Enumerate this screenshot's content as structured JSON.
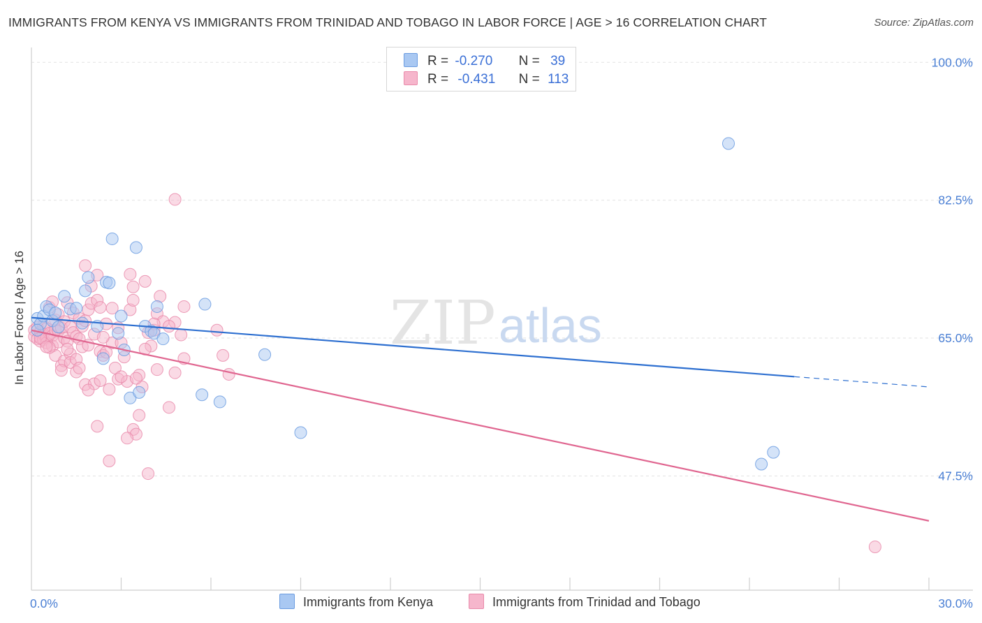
{
  "title": "IMMIGRANTS FROM KENYA VS IMMIGRANTS FROM TRINIDAD AND TOBAGO IN LABOR FORCE | AGE > 16 CORRELATION CHART",
  "source": "Source: ZipAtlas.com",
  "watermark": {
    "zip": "ZIP",
    "atlas": "atlas"
  },
  "legend": {
    "kenya": {
      "r_label": "R =",
      "r_value": "-0.270",
      "n_label": "N =",
      "n_value": "39"
    },
    "tt": {
      "r_label": "R =",
      "r_value": "-0.431",
      "n_label": "N =",
      "n_value": "113"
    }
  },
  "bottom_legend": {
    "kenya": "Immigrants from Kenya",
    "tt": "Immigrants from Trinidad and Tobago"
  },
  "colors": {
    "kenya_fill": "#a9c8f2",
    "kenya_stroke": "#6a9be0",
    "kenya_line": "#2d6fd0",
    "tt_fill": "#f6b6cc",
    "tt_stroke": "#e98aaa",
    "tt_line": "#e06690",
    "tick_label": "#4a7fd4",
    "grid": "#e2e2e2"
  },
  "chart_data": {
    "type": "scatter",
    "title": "IMMIGRANTS FROM KENYA VS IMMIGRANTS FROM TRINIDAD AND TOBAGO IN LABOR FORCE | AGE > 16 CORRELATION CHART",
    "xlabel": "",
    "ylabel": "In Labor Force | Age > 16",
    "xlim": [
      0,
      30
    ],
    "ylim": [
      33,
      101
    ],
    "x_tick_labels": [
      "0.0%",
      "30.0%"
    ],
    "y_ticks": [
      47.5,
      65.0,
      82.5,
      100.0
    ],
    "y_tick_labels": [
      "47.5%",
      "65.0%",
      "82.5%",
      "100.0%"
    ],
    "series": [
      {
        "name": "Immigrants from Kenya",
        "r": -0.27,
        "n": 39,
        "trend": {
          "x0": 0,
          "y0": 67.6,
          "x1": 25.5,
          "y1": 60.1,
          "dash_x1": 30,
          "dash_y1": 58.8
        },
        "points": [
          [
            0.2,
            67.5
          ],
          [
            0.3,
            66.8
          ],
          [
            0.4,
            67.8
          ],
          [
            0.5,
            69.0
          ],
          [
            0.6,
            68.6
          ],
          [
            0.7,
            67.2
          ],
          [
            0.8,
            68.2
          ],
          [
            0.9,
            66.4
          ],
          [
            1.1,
            70.3
          ],
          [
            1.3,
            68.7
          ],
          [
            1.5,
            68.8
          ],
          [
            1.7,
            66.9
          ],
          [
            1.8,
            71.0
          ],
          [
            1.9,
            72.7
          ],
          [
            2.2,
            66.5
          ],
          [
            2.4,
            62.4
          ],
          [
            2.5,
            72.1
          ],
          [
            2.6,
            72.0
          ],
          [
            2.7,
            77.6
          ],
          [
            2.9,
            65.6
          ],
          [
            3.0,
            67.8
          ],
          [
            3.1,
            63.5
          ],
          [
            3.3,
            57.4
          ],
          [
            3.5,
            76.5
          ],
          [
            3.6,
            58.1
          ],
          [
            3.8,
            66.5
          ],
          [
            4.0,
            65.9
          ],
          [
            4.1,
            65.6
          ],
          [
            4.2,
            69.0
          ],
          [
            4.4,
            64.9
          ],
          [
            5.7,
            57.8
          ],
          [
            5.8,
            69.3
          ],
          [
            6.3,
            56.9
          ],
          [
            7.8,
            62.9
          ],
          [
            9.0,
            53.0
          ],
          [
            23.3,
            89.7
          ],
          [
            24.4,
            49.0
          ],
          [
            24.8,
            50.5
          ],
          [
            0.2,
            66.0
          ]
        ]
      },
      {
        "name": "Immigrants from Trinidad and Tobago",
        "r": -0.431,
        "n": 113,
        "trend": {
          "x0": 0,
          "y0": 66.0,
          "x1": 30,
          "y1": 41.8
        },
        "points": [
          [
            0.1,
            66.0
          ],
          [
            0.1,
            65.2
          ],
          [
            0.2,
            66.4
          ],
          [
            0.2,
            64.9
          ],
          [
            0.3,
            65.8
          ],
          [
            0.3,
            64.6
          ],
          [
            0.4,
            65.5
          ],
          [
            0.4,
            66.6
          ],
          [
            0.4,
            64.8
          ],
          [
            0.5,
            65.0
          ],
          [
            0.5,
            66.2
          ],
          [
            0.5,
            64.4
          ],
          [
            0.6,
            65.6
          ],
          [
            0.6,
            68.9
          ],
          [
            0.7,
            65.3
          ],
          [
            0.7,
            64.0
          ],
          [
            0.8,
            66.0
          ],
          [
            0.8,
            67.3
          ],
          [
            0.8,
            62.8
          ],
          [
            0.9,
            64.5
          ],
          [
            0.9,
            65.9
          ],
          [
            0.9,
            68.0
          ],
          [
            1.0,
            61.5
          ],
          [
            1.0,
            66.3
          ],
          [
            1.1,
            65.0
          ],
          [
            1.1,
            67.1
          ],
          [
            1.1,
            62.1
          ],
          [
            1.2,
            64.6
          ],
          [
            1.2,
            69.5
          ],
          [
            1.3,
            63.0
          ],
          [
            1.3,
            66.4
          ],
          [
            1.3,
            61.9
          ],
          [
            1.4,
            68.2
          ],
          [
            1.4,
            65.7
          ],
          [
            1.5,
            65.2
          ],
          [
            1.5,
            62.3
          ],
          [
            1.6,
            67.5
          ],
          [
            1.6,
            64.9
          ],
          [
            1.7,
            63.9
          ],
          [
            1.7,
            66.5
          ],
          [
            1.8,
            67.2
          ],
          [
            1.8,
            74.2
          ],
          [
            1.8,
            59.1
          ],
          [
            1.9,
            64.1
          ],
          [
            1.9,
            68.6
          ],
          [
            2.0,
            69.4
          ],
          [
            2.0,
            71.6
          ],
          [
            2.1,
            65.5
          ],
          [
            2.1,
            59.2
          ],
          [
            2.2,
            73.0
          ],
          [
            2.2,
            69.8
          ],
          [
            2.3,
            68.9
          ],
          [
            2.3,
            63.3
          ],
          [
            2.4,
            62.8
          ],
          [
            2.5,
            66.8
          ],
          [
            2.5,
            63.2
          ],
          [
            2.6,
            49.4
          ],
          [
            2.7,
            68.8
          ],
          [
            2.7,
            64.4
          ],
          [
            2.8,
            61.2
          ],
          [
            2.9,
            66.3
          ],
          [
            2.9,
            59.8
          ],
          [
            3.0,
            64.4
          ],
          [
            3.1,
            62.6
          ],
          [
            3.2,
            59.5
          ],
          [
            3.3,
            68.6
          ],
          [
            3.3,
            73.1
          ],
          [
            3.4,
            71.5
          ],
          [
            3.4,
            69.8
          ],
          [
            3.4,
            53.4
          ],
          [
            3.5,
            52.8
          ],
          [
            3.6,
            60.3
          ],
          [
            3.7,
            58.8
          ],
          [
            3.8,
            72.2
          ],
          [
            3.9,
            65.7
          ],
          [
            4.0,
            64.0
          ],
          [
            4.1,
            66.0
          ],
          [
            4.2,
            68.1
          ],
          [
            4.2,
            61.0
          ],
          [
            4.3,
            70.3
          ],
          [
            4.4,
            67.1
          ],
          [
            4.6,
            56.2
          ],
          [
            4.8,
            67.0
          ],
          [
            4.8,
            60.6
          ],
          [
            5.0,
            65.4
          ],
          [
            5.1,
            62.4
          ],
          [
            5.1,
            69.0
          ],
          [
            6.2,
            66.0
          ],
          [
            6.4,
            62.8
          ],
          [
            6.6,
            60.4
          ],
          [
            4.8,
            82.6
          ],
          [
            3.9,
            47.8
          ],
          [
            28.2,
            38.5
          ],
          [
            0.6,
            63.8
          ],
          [
            1.0,
            60.9
          ],
          [
            2.3,
            59.6
          ],
          [
            3.2,
            52.3
          ],
          [
            3.6,
            55.2
          ],
          [
            4.1,
            66.8
          ],
          [
            0.3,
            65.0
          ],
          [
            0.5,
            63.9
          ],
          [
            0.7,
            69.6
          ],
          [
            1.2,
            63.6
          ],
          [
            1.5,
            60.7
          ],
          [
            1.9,
            58.4
          ],
          [
            2.2,
            53.8
          ],
          [
            2.6,
            58.5
          ],
          [
            3.0,
            60.1
          ],
          [
            3.5,
            59.9
          ],
          [
            3.8,
            63.6
          ],
          [
            4.6,
            66.5
          ],
          [
            1.6,
            61.2
          ],
          [
            2.4,
            65.1
          ]
        ]
      }
    ]
  }
}
